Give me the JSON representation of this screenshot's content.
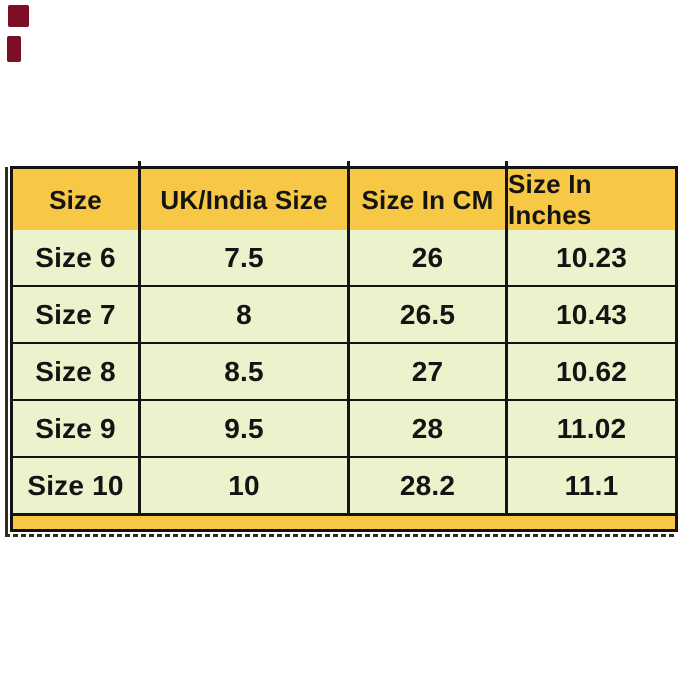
{
  "colors": {
    "header_bg": "#F6C845",
    "row_bg": "#EAF3CC",
    "border": "#141414",
    "text": "#141414",
    "shadow": "#2E2E20",
    "mark": "#7D0F24",
    "page_bg": "#FFFFFF"
  },
  "chart_data": {
    "type": "table",
    "columns": [
      "Size",
      "UK/India Size",
      "Size In CM",
      "Size In Inches"
    ],
    "rows": [
      [
        "Size 6",
        "7.5",
        "26",
        "10.23"
      ],
      [
        "Size 7",
        "8",
        "26.5",
        "10.43"
      ],
      [
        "Size 8",
        "8.5",
        "27",
        "10.62"
      ],
      [
        "Size 9",
        "9.5",
        "28",
        "11.02"
      ],
      [
        "Size 10",
        "10",
        "28.2",
        "11.1"
      ]
    ],
    "layout_hints": {
      "header_row_highlighted": true,
      "footer_strip": true,
      "grid": "on"
    }
  }
}
